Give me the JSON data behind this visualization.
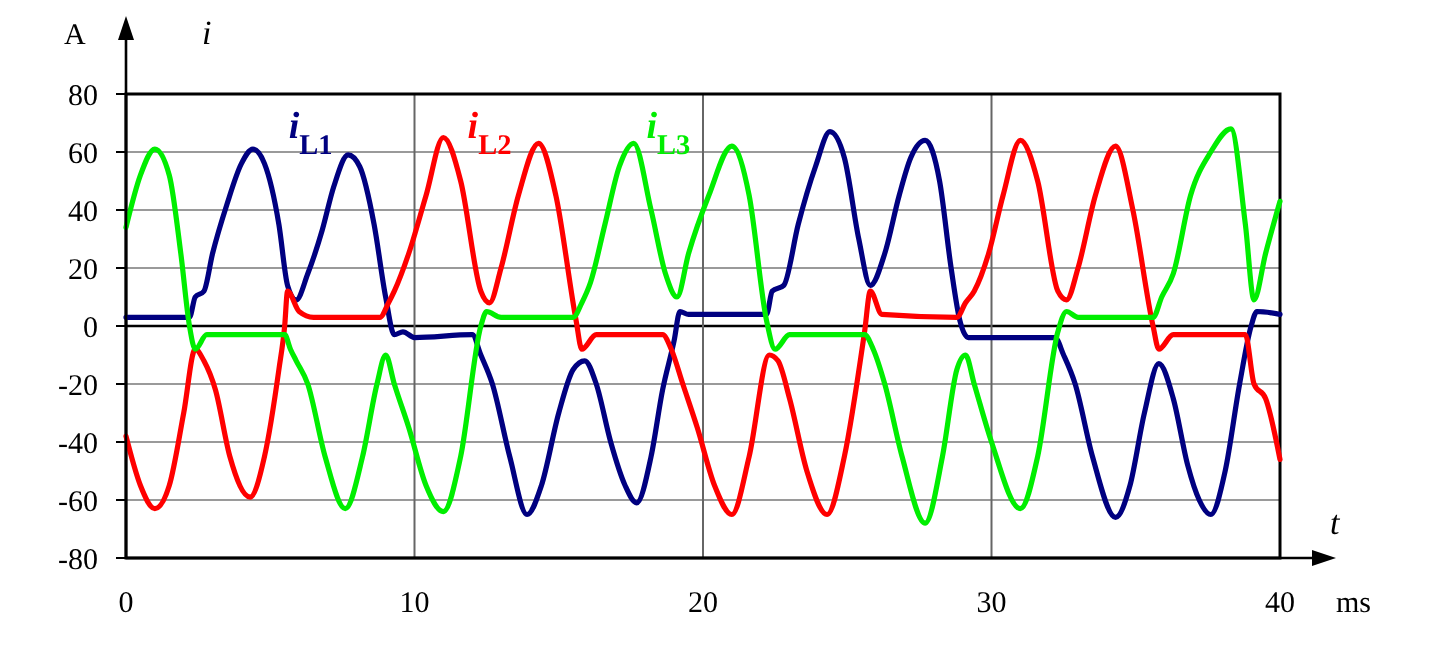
{
  "chart_data": {
    "type": "line",
    "xlabel": "t",
    "ylabel": "i",
    "annotations": [
      "A",
      "ms"
    ],
    "xlim": [
      0,
      40
    ],
    "ylim": [
      -80,
      80
    ],
    "xticks": [
      0,
      10,
      20,
      30,
      40
    ],
    "yticks": [
      -80,
      -60,
      -40,
      -20,
      0,
      20,
      40,
      60,
      80
    ],
    "grid": true,
    "marker": "none",
    "line_style": "solid",
    "series": [
      {
        "name": "i$_{L1}$",
        "color": "#000080",
        "x": [
          0,
          2.2,
          2.4,
          2.7,
          3.0,
          3.5,
          4.0,
          4.4,
          4.8,
          5.3,
          5.6,
          5.9,
          6.3,
          6.8,
          7.2,
          7.7,
          8.1,
          8.6,
          9.0,
          9.3,
          9.6,
          10,
          12,
          12.3,
          12.7,
          13.3,
          13.9,
          14.4,
          15.0,
          15.5,
          15.9,
          16.3,
          16.8,
          17.3,
          17.7,
          18.2,
          18.6,
          19.0,
          19.2,
          19.5,
          22.2,
          22.4,
          22.8,
          23.3,
          23.9,
          24.4,
          24.9,
          25.4,
          25.8,
          26.3,
          26.8,
          27.2,
          27.7,
          28.2,
          28.6,
          28.9,
          29.2,
          32.2,
          32.5,
          32.9,
          33.5,
          34.3,
          34.8,
          35.3,
          35.8,
          36.3,
          36.8,
          37.2,
          37.6,
          38.1,
          38.6,
          39.0,
          39.2,
          40
        ],
        "values": [
          3,
          3,
          10,
          12,
          25,
          42,
          56,
          61,
          56,
          35,
          14,
          9,
          18,
          33,
          48,
          59,
          55,
          35,
          10,
          -3,
          -2,
          -4,
          -3,
          -10,
          -20,
          -45,
          -65,
          -55,
          -30,
          -15,
          -12,
          -20,
          -40,
          -55,
          -61,
          -45,
          -22,
          -5,
          5,
          4,
          4,
          12,
          14,
          35,
          55,
          67,
          58,
          30,
          14,
          25,
          45,
          58,
          64,
          50,
          20,
          2,
          -4,
          -4,
          -10,
          -20,
          -45,
          -66,
          -55,
          -30,
          -13,
          -25,
          -48,
          -60,
          -65,
          -50,
          -20,
          0,
          5,
          4
        ]
      },
      {
        "name": "i$_{L2}$",
        "color": "#ff0000",
        "x": [
          0,
          0.5,
          1.0,
          1.5,
          2.0,
          2.4,
          2.7,
          3.1,
          3.6,
          4.3,
          4.8,
          5.3,
          5.5,
          5.6,
          6.0,
          6.5,
          8.8,
          9.1,
          9.3,
          9.8,
          10.4,
          11.0,
          11.6,
          12.3,
          12.6,
          13.0,
          13.6,
          14.3,
          14.9,
          15.6,
          15.8,
          16.3,
          18.6,
          18.9,
          19.3,
          19.8,
          20.4,
          21.0,
          21.6,
          22.3,
          22.6,
          23.0,
          23.6,
          24.3,
          24.9,
          25.6,
          25.8,
          26.2,
          28.8,
          29.1,
          29.4,
          29.9,
          30.4,
          31.0,
          31.6,
          32.3,
          32.6,
          33.0,
          33.6,
          34.3,
          34.9,
          35.6,
          35.8,
          36.3,
          38.8,
          39.1,
          39.5,
          40
        ],
        "values": [
          -38,
          -55,
          -63,
          -55,
          -30,
          -8,
          -12,
          -22,
          -45,
          -59,
          -45,
          -15,
          0,
          12,
          5,
          3,
          3,
          8,
          12,
          25,
          45,
          65,
          50,
          12,
          8,
          20,
          45,
          63,
          45,
          2,
          -8,
          -3,
          -3,
          -8,
          -20,
          -35,
          -55,
          -65,
          -45,
          -10,
          -12,
          -25,
          -50,
          -65,
          -45,
          -2,
          12,
          4,
          3,
          8,
          12,
          25,
          45,
          64,
          50,
          12,
          9,
          20,
          45,
          62,
          40,
          0,
          -8,
          -3,
          -3,
          -20,
          -25,
          -46
        ]
      },
      {
        "name": "i$_{L3}$",
        "color": "#00ee00",
        "x": [
          0,
          0.5,
          1.0,
          1.5,
          1.9,
          2.2,
          2.4,
          2.8,
          5.5,
          5.7,
          5.9,
          6.3,
          6.9,
          7.6,
          8.2,
          8.7,
          9.0,
          9.3,
          9.8,
          10.4,
          11.0,
          11.6,
          12.3,
          12.5,
          13.0,
          15.5,
          15.8,
          16.1,
          16.6,
          17.1,
          17.6,
          18.2,
          18.7,
          19.1,
          19.5,
          20.2,
          21.0,
          21.6,
          22.2,
          22.5,
          23.0,
          25.6,
          25.9,
          26.3,
          26.9,
          27.7,
          28.3,
          28.8,
          29.1,
          29.4,
          30.0,
          31.0,
          31.6,
          32.3,
          32.6,
          33.0,
          35.6,
          35.9,
          36.3,
          36.9,
          37.6,
          38.3,
          38.8,
          39.1,
          39.5,
          40
        ],
        "values": [
          34,
          52,
          61,
          52,
          25,
          0,
          -8,
          -3,
          -3,
          -8,
          -12,
          -20,
          -45,
          -63,
          -45,
          -20,
          -10,
          -20,
          -35,
          -55,
          -64,
          -45,
          0,
          5,
          3,
          3,
          8,
          15,
          35,
          55,
          63,
          40,
          18,
          10,
          25,
          45,
          62,
          45,
          2,
          -8,
          -3,
          -3,
          -8,
          -20,
          -45,
          -68,
          -45,
          -15,
          -10,
          -20,
          -40,
          -63,
          -45,
          -2,
          5,
          3,
          3,
          10,
          18,
          45,
          60,
          68,
          35,
          9,
          25,
          43
        ]
      }
    ]
  }
}
